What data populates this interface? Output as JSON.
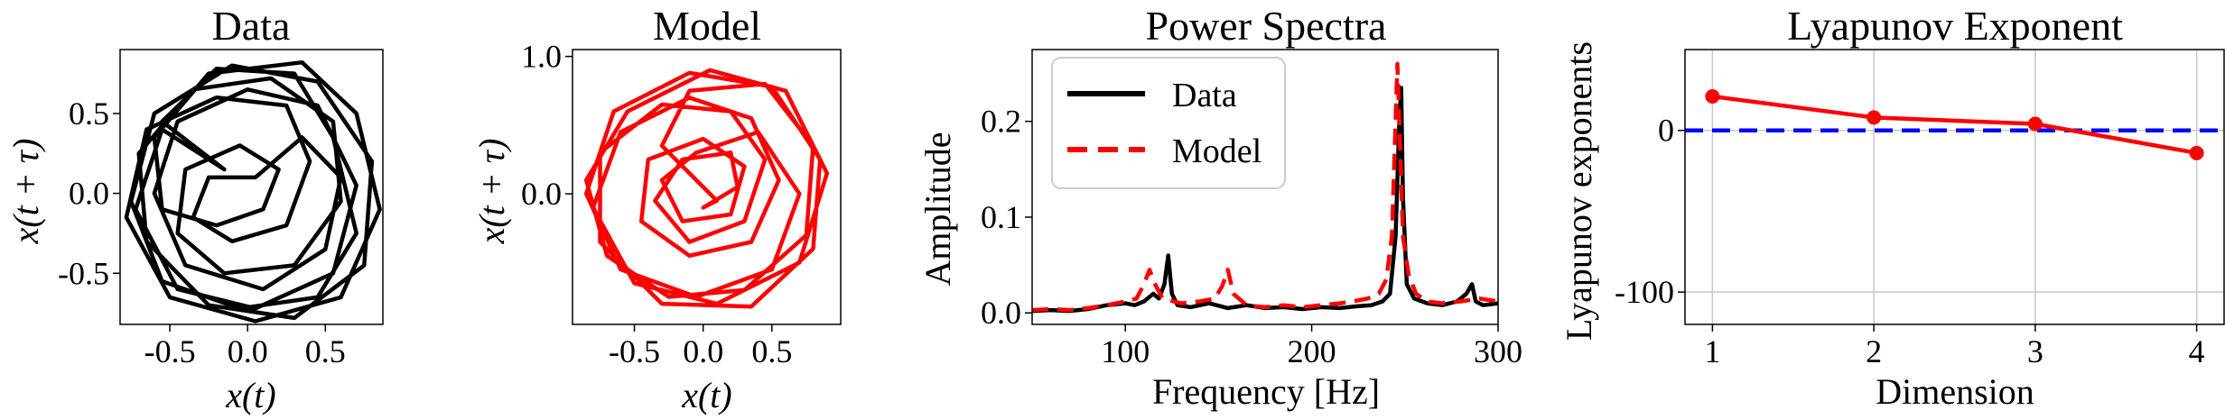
{
  "figure": {
    "panel_titles": [
      "Data",
      "Model",
      "Power Spectra",
      "Lyapunov Exponent"
    ]
  },
  "colors": {
    "data": "#000000",
    "model": "#ff0000",
    "reference": "#0000ff",
    "grid": "#c8c8c8"
  },
  "chart_data": [
    {
      "type": "line",
      "title": "Data",
      "xlabel": "x(t)",
      "ylabel": "x(t + τ)",
      "xlim": [
        -0.82,
        0.87
      ],
      "ylim": [
        -0.82,
        0.9
      ],
      "xticks": [
        -0.5,
        0.0,
        0.5
      ],
      "xtick_labels": [
        "-0.5",
        "0.0",
        "0.5"
      ],
      "yticks": [
        -0.5,
        0.0,
        0.5
      ],
      "ytick_labels": [
        "-0.5",
        "0.0",
        "0.5"
      ],
      "grid": false,
      "series": [
        {
          "color": "#000000",
          "points": [
            [
              -0.15,
              0.15
            ],
            [
              -0.55,
              0.45
            ],
            [
              -0.2,
              0.78
            ],
            [
              0.3,
              0.75
            ],
            [
              0.55,
              0.35
            ],
            [
              0.7,
              -0.25
            ],
            [
              0.45,
              -0.65
            ],
            [
              -0.05,
              -0.72
            ],
            [
              -0.55,
              -0.55
            ],
            [
              -0.75,
              -0.05
            ],
            [
              -0.6,
              0.5
            ],
            [
              -0.1,
              0.8
            ],
            [
              0.45,
              0.7
            ],
            [
              0.8,
              0.2
            ],
            [
              0.75,
              -0.45
            ],
            [
              0.3,
              -0.78
            ],
            [
              -0.25,
              -0.7
            ],
            [
              -0.65,
              -0.3
            ],
            [
              -0.7,
              0.25
            ],
            [
              -0.35,
              0.65
            ],
            [
              0.15,
              0.72
            ],
            [
              0.55,
              0.45
            ],
            [
              0.6,
              -0.05
            ],
            [
              0.3,
              -0.45
            ],
            [
              -0.15,
              -0.5
            ],
            [
              -0.45,
              -0.25
            ],
            [
              -0.4,
              0.15
            ],
            [
              -0.05,
              0.3
            ],
            [
              0.2,
              0.15
            ],
            [
              0.1,
              -0.1
            ],
            [
              -0.2,
              -0.2
            ],
            [
              -0.55,
              -0.1
            ],
            [
              -0.6,
              0.35
            ],
            [
              -0.25,
              0.75
            ],
            [
              0.35,
              0.82
            ],
            [
              0.7,
              0.5
            ],
            [
              0.85,
              -0.1
            ],
            [
              0.6,
              -0.65
            ],
            [
              0.05,
              -0.8
            ],
            [
              -0.5,
              -0.65
            ],
            [
              -0.78,
              -0.15
            ],
            [
              -0.65,
              0.4
            ],
            [
              -0.2,
              0.6
            ],
            [
              0.25,
              0.55
            ],
            [
              0.4,
              0.2
            ],
            [
              0.25,
              -0.2
            ],
            [
              -0.1,
              -0.3
            ],
            [
              -0.35,
              -0.15
            ],
            [
              -0.25,
              0.1
            ],
            [
              0.05,
              0.1
            ],
            [
              0.35,
              0.35
            ],
            [
              0.6,
              0.1
            ],
            [
              0.5,
              -0.35
            ],
            [
              0.1,
              -0.6
            ],
            [
              -0.4,
              -0.45
            ],
            [
              -0.6,
              0.0
            ],
            [
              -0.45,
              0.45
            ],
            [
              0.0,
              0.65
            ],
            [
              0.45,
              0.55
            ],
            [
              0.7,
              0.05
            ],
            [
              0.55,
              -0.5
            ],
            [
              0.05,
              -0.72
            ],
            [
              -0.45,
              -0.6
            ],
            [
              -0.72,
              -0.1
            ],
            [
              -0.55,
              0.4
            ],
            [
              -0.15,
              0.15
            ]
          ]
        }
      ]
    },
    {
      "type": "line",
      "title": "Model",
      "xlabel": "x(t)",
      "ylabel": "x(t + τ)",
      "xlim": [
        -0.95,
        1.0
      ],
      "ylim": [
        -0.95,
        1.05
      ],
      "xticks": [
        -0.5,
        0.0,
        0.5
      ],
      "xtick_labels": [
        "-0.5",
        "0.0",
        "0.5"
      ],
      "yticks": [
        0.0,
        1.0
      ],
      "ytick_labels": [
        "0.0",
        "1.0"
      ],
      "grid": false,
      "series": [
        {
          "color": "#ff0000",
          "points": [
            [
              0.1,
              -0.05
            ],
            [
              -0.3,
              0.35
            ],
            [
              -0.1,
              0.75
            ],
            [
              0.45,
              0.8
            ],
            [
              0.8,
              0.35
            ],
            [
              0.75,
              -0.3
            ],
            [
              0.3,
              -0.7
            ],
            [
              -0.25,
              -0.75
            ],
            [
              -0.7,
              -0.45
            ],
            [
              -0.85,
              0.1
            ],
            [
              -0.55,
              0.6
            ],
            [
              0.05,
              0.9
            ],
            [
              0.6,
              0.75
            ],
            [
              0.9,
              0.15
            ],
            [
              0.7,
              -0.5
            ],
            [
              0.1,
              -0.8
            ],
            [
              -0.5,
              -0.65
            ],
            [
              -0.8,
              -0.1
            ],
            [
              -0.6,
              0.45
            ],
            [
              -0.1,
              0.7
            ],
            [
              0.35,
              0.55
            ],
            [
              0.55,
              0.1
            ],
            [
              0.35,
              -0.35
            ],
            [
              -0.1,
              -0.45
            ],
            [
              -0.45,
              -0.2
            ],
            [
              -0.4,
              0.25
            ],
            [
              0.0,
              0.4
            ],
            [
              0.3,
              0.2
            ],
            [
              0.2,
              -0.15
            ],
            [
              -0.15,
              -0.2
            ],
            [
              -0.3,
              0.1
            ],
            [
              -0.05,
              0.3
            ],
            [
              0.4,
              0.45
            ],
            [
              0.7,
              0.0
            ],
            [
              0.5,
              -0.55
            ],
            [
              -0.05,
              -0.75
            ],
            [
              -0.6,
              -0.55
            ],
            [
              -0.85,
              0.0
            ],
            [
              -0.65,
              0.6
            ],
            [
              -0.1,
              0.88
            ],
            [
              0.5,
              0.78
            ],
            [
              0.85,
              0.25
            ],
            [
              0.8,
              -0.4
            ],
            [
              0.35,
              -0.82
            ],
            [
              -0.3,
              -0.8
            ],
            [
              -0.75,
              -0.35
            ],
            [
              -0.75,
              0.3
            ],
            [
              -0.3,
              0.65
            ],
            [
              0.2,
              0.6
            ],
            [
              0.45,
              0.25
            ],
            [
              0.3,
              -0.2
            ],
            [
              -0.1,
              -0.35
            ],
            [
              -0.35,
              -0.05
            ],
            [
              -0.15,
              0.25
            ],
            [
              0.2,
              0.3
            ],
            [
              0.25,
              0.05
            ],
            [
              0.0,
              -0.1
            ],
            [
              0.1,
              -0.05
            ]
          ]
        }
      ]
    },
    {
      "type": "line",
      "title": "Power Spectra",
      "xlabel": "Frequency [Hz]",
      "ylabel": "Amplitude",
      "xlim": [
        50,
        300
      ],
      "ylim": [
        -0.012,
        0.275
      ],
      "xticks": [
        100,
        200,
        300
      ],
      "xtick_labels": [
        "100",
        "200",
        "300"
      ],
      "yticks": [
        0.0,
        0.1,
        0.2
      ],
      "ytick_labels": [
        "0.0",
        "0.1",
        "0.2"
      ],
      "grid": false,
      "legend": "upper-left",
      "legend_labels": [
        "Data",
        "Model"
      ],
      "series": [
        {
          "name": "Data",
          "color": "#000000",
          "style": "solid",
          "points": [
            [
              50,
              0.002
            ],
            [
              60,
              0.003
            ],
            [
              70,
              0.002
            ],
            [
              80,
              0.004
            ],
            [
              90,
              0.008
            ],
            [
              100,
              0.01
            ],
            [
              105,
              0.008
            ],
            [
              110,
              0.012
            ],
            [
              115,
              0.02
            ],
            [
              118,
              0.015
            ],
            [
              121,
              0.03
            ],
            [
              123,
              0.06
            ],
            [
              125,
              0.02
            ],
            [
              128,
              0.008
            ],
            [
              135,
              0.006
            ],
            [
              145,
              0.01
            ],
            [
              155,
              0.005
            ],
            [
              165,
              0.008
            ],
            [
              175,
              0.005
            ],
            [
              185,
              0.006
            ],
            [
              195,
              0.004
            ],
            [
              205,
              0.006
            ],
            [
              215,
              0.005
            ],
            [
              225,
              0.007
            ],
            [
              232,
              0.008
            ],
            [
              238,
              0.012
            ],
            [
              242,
              0.02
            ],
            [
              245,
              0.08
            ],
            [
              247,
              0.2
            ],
            [
              248,
              0.235
            ],
            [
              249,
              0.12
            ],
            [
              251,
              0.03
            ],
            [
              255,
              0.015
            ],
            [
              262,
              0.01
            ],
            [
              270,
              0.008
            ],
            [
              278,
              0.012
            ],
            [
              283,
              0.02
            ],
            [
              286,
              0.03
            ],
            [
              288,
              0.012
            ],
            [
              292,
              0.008
            ],
            [
              300,
              0.01
            ]
          ]
        },
        {
          "name": "Model",
          "color": "#ff0000",
          "style": "dashed",
          "points": [
            [
              50,
              0.003
            ],
            [
              60,
              0.004
            ],
            [
              70,
              0.003
            ],
            [
              80,
              0.005
            ],
            [
              90,
              0.008
            ],
            [
              100,
              0.012
            ],
            [
              106,
              0.015
            ],
            [
              110,
              0.03
            ],
            [
              113,
              0.045
            ],
            [
              116,
              0.03
            ],
            [
              120,
              0.015
            ],
            [
              130,
              0.01
            ],
            [
              140,
              0.012
            ],
            [
              148,
              0.015
            ],
            [
              152,
              0.028
            ],
            [
              155,
              0.045
            ],
            [
              158,
              0.02
            ],
            [
              165,
              0.008
            ],
            [
              175,
              0.006
            ],
            [
              185,
              0.008
            ],
            [
              195,
              0.006
            ],
            [
              205,
              0.008
            ],
            [
              215,
              0.01
            ],
            [
              222,
              0.012
            ],
            [
              230,
              0.015
            ],
            [
              236,
              0.02
            ],
            [
              240,
              0.035
            ],
            [
              243,
              0.08
            ],
            [
              245,
              0.2
            ],
            [
              246,
              0.26
            ],
            [
              247,
              0.2
            ],
            [
              249,
              0.08
            ],
            [
              252,
              0.04
            ],
            [
              256,
              0.02
            ],
            [
              262,
              0.012
            ],
            [
              270,
              0.01
            ],
            [
              280,
              0.012
            ],
            [
              290,
              0.015
            ],
            [
              300,
              0.012
            ]
          ]
        }
      ]
    },
    {
      "type": "line",
      "title": "Lyapunov Exponent",
      "xlabel": "Dimension",
      "ylabel": "Lyapunov exponents",
      "xlim": [
        0.83,
        4.17
      ],
      "ylim": [
        -120,
        50
      ],
      "xticks": [
        1,
        2,
        3,
        4
      ],
      "xtick_labels": [
        "1",
        "2",
        "3",
        "4"
      ],
      "yticks": [
        -100,
        0
      ],
      "ytick_labels": [
        "-100",
        "0"
      ],
      "grid": true,
      "reference_line": {
        "y": 0,
        "color": "#0000ff",
        "style": "dashed"
      },
      "series": [
        {
          "color": "#ff0000",
          "markers": true,
          "points": [
            [
              1,
              21
            ],
            [
              2,
              8
            ],
            [
              3,
              4
            ],
            [
              4,
              -14
            ]
          ]
        }
      ]
    }
  ]
}
